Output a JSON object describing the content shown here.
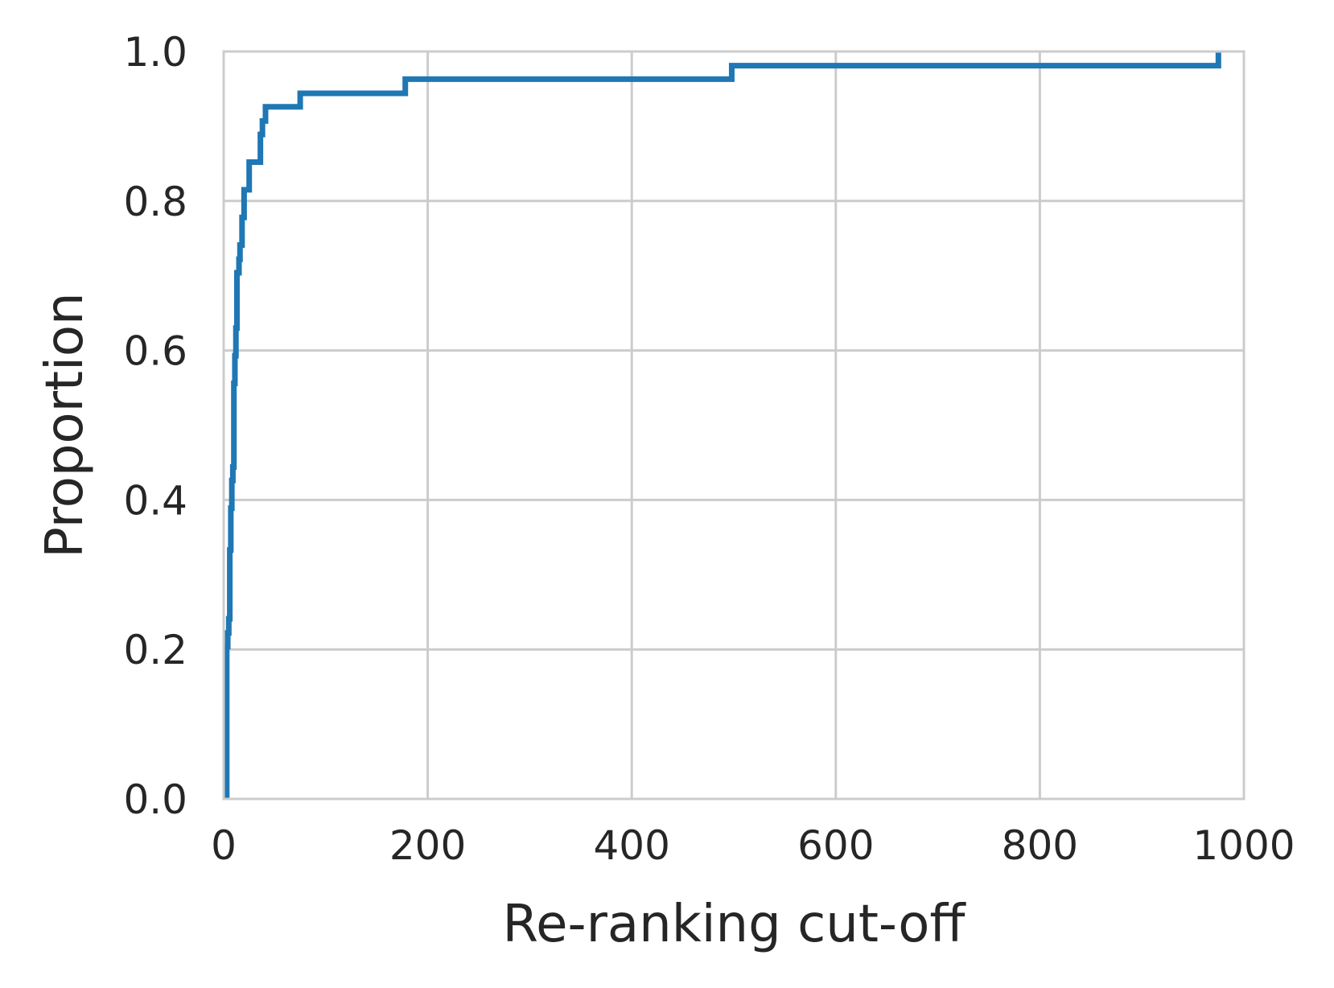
{
  "chart_data": {
    "type": "line",
    "subtype": "ecdf-step",
    "title": "",
    "xlabel": "Re-ranking cut-off",
    "ylabel": "Proportion",
    "xlim": [
      0,
      1000
    ],
    "ylim": [
      0,
      1.0
    ],
    "xticks": [
      0,
      200,
      400,
      600,
      800,
      1000
    ],
    "xtick_labels": [
      "0",
      "200",
      "400",
      "600",
      "800",
      "1000"
    ],
    "yticks": [
      0.0,
      0.2,
      0.4,
      0.6,
      0.8,
      1.0
    ],
    "ytick_labels": [
      "0.0",
      "0.2",
      "0.4",
      "0.6",
      "0.8",
      "1.0"
    ],
    "grid": true,
    "legend": "none",
    "series": [
      {
        "color": "#1f77b4",
        "x": [
          3,
          4,
          5,
          6,
          7,
          8,
          9,
          10,
          11,
          12,
          13,
          14,
          15,
          16,
          18,
          20,
          21,
          22,
          23,
          25,
          32,
          36,
          38,
          41,
          75,
          178,
          498,
          975
        ],
        "y": [
          0.204,
          0.222,
          0.241,
          0.333,
          0.389,
          0.426,
          0.444,
          0.556,
          0.593,
          0.63,
          0.704,
          0.704,
          0.722,
          0.741,
          0.778,
          0.815,
          0.815,
          0.815,
          0.815,
          0.852,
          0.852,
          0.889,
          0.907,
          0.926,
          0.944,
          0.963,
          0.981,
          1.0
        ]
      }
    ]
  }
}
